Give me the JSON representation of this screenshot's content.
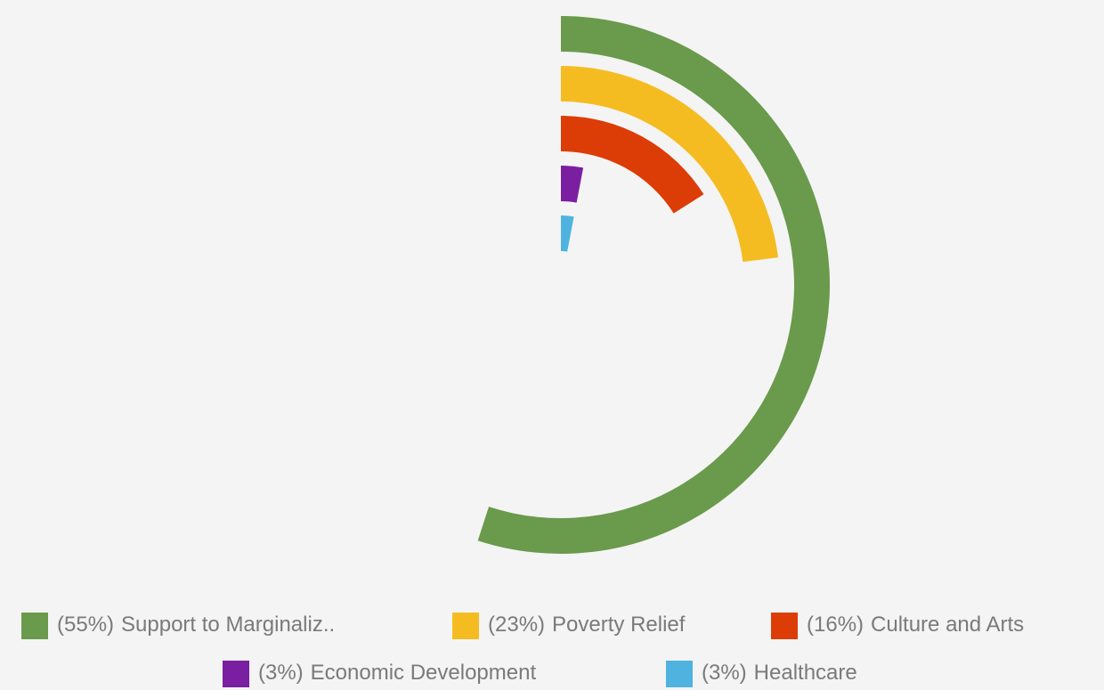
{
  "chart_data": {
    "type": "radialBar",
    "categories": [
      "Support to Marginaliz..",
      "Poverty Relief",
      "Culture and Arts",
      "Economic Development",
      "Healthcare"
    ],
    "values": [
      55,
      23,
      16,
      3,
      3
    ],
    "value_labels": [
      "(55%)",
      "(23%)",
      "(16%)",
      "(3%)",
      "(3%)"
    ],
    "colors": [
      "#6a9a4c",
      "#f5bc22",
      "#dc3d06",
      "#7b1fa2",
      "#4fb3e0"
    ],
    "ylim": [
      0,
      100
    ],
    "legend": "bottom"
  }
}
